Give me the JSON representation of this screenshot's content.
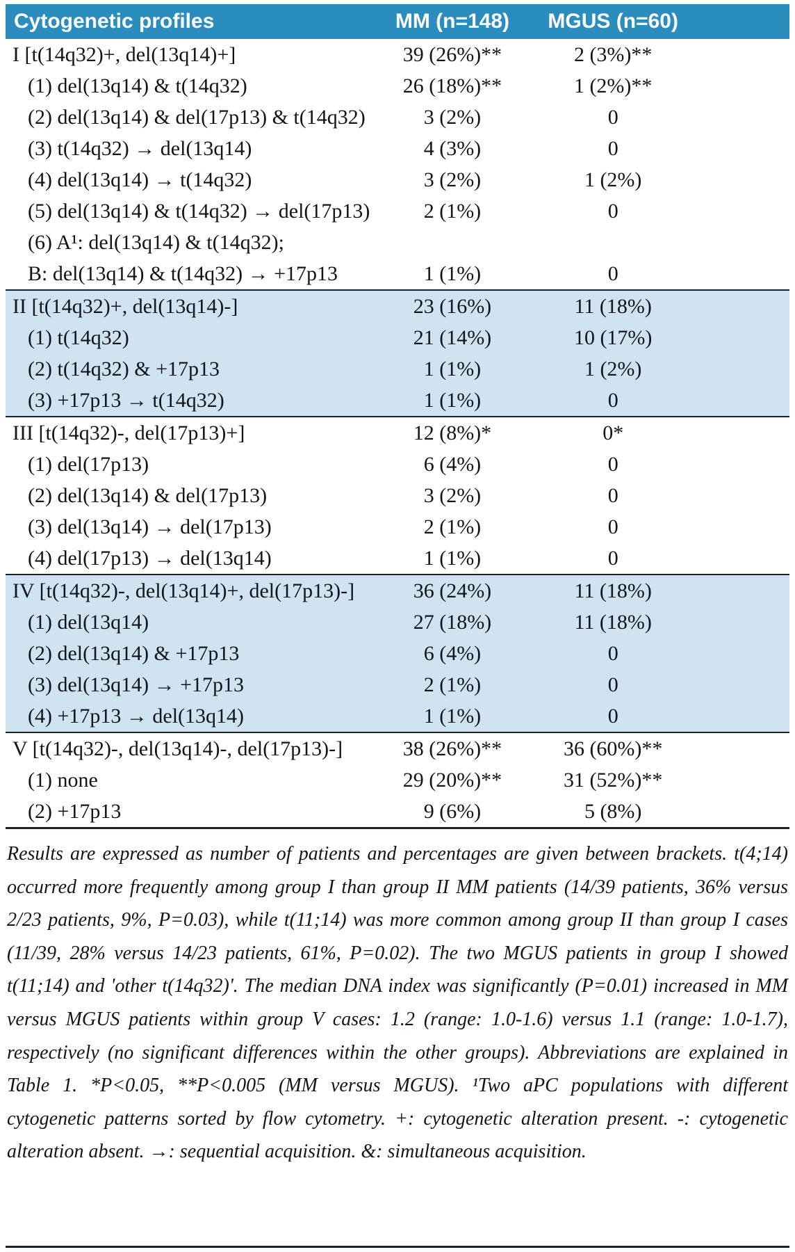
{
  "colors": {
    "header_bg": "#2b8cbe",
    "shaded_bg": "#cfe3f0",
    "text": "#10151c",
    "rule": "#16222e"
  },
  "table": {
    "columns": [
      "Cytogenetic profiles",
      "MM (n=148)",
      "MGUS (n=60)"
    ],
    "sections": [
      {
        "shaded": false,
        "rows": [
          {
            "indent": 0,
            "label": "I [t(14q32)+, del(13q14)+]",
            "mm": "39 (26%)**",
            "mgus": "2 (3%)**"
          },
          {
            "indent": 1,
            "label": "(1) del(13q14) & t(14q32)",
            "mm": "26 (18%)**",
            "mgus": "1 (2%)**"
          },
          {
            "indent": 1,
            "label": "(2) del(13q14) & del(17p13) & t(14q32)",
            "mm": "3 (2%)",
            "mgus": "0"
          },
          {
            "indent": 1,
            "label": "(3) t(14q32) → del(13q14)",
            "mm": "4 (3%)",
            "mgus": "0"
          },
          {
            "indent": 1,
            "label": "(4) del(13q14) → t(14q32)",
            "mm": "3 (2%)",
            "mgus": "1 (2%)"
          },
          {
            "indent": 1,
            "label": "(5) del(13q14) & t(14q32) → del(17p13)",
            "mm": "2 (1%)",
            "mgus": "0"
          },
          {
            "indent": 1,
            "label": "(6) A¹: del(13q14) & t(14q32);",
            "mm": "",
            "mgus": ""
          },
          {
            "indent": 1,
            "label": "B: del(13q14) & t(14q32) → +17p13",
            "mm": "1 (1%)",
            "mgus": "0"
          }
        ]
      },
      {
        "shaded": true,
        "rows": [
          {
            "indent": 0,
            "label": "II [t(14q32)+, del(13q14)-]",
            "mm": "23 (16%)",
            "mgus": "11 (18%)"
          },
          {
            "indent": 1,
            "label": "(1) t(14q32)",
            "mm": "21 (14%)",
            "mgus": "10 (17%)"
          },
          {
            "indent": 1,
            "label": "(2) t(14q32) & +17p13",
            "mm": "1 (1%)",
            "mgus": "1 (2%)"
          },
          {
            "indent": 1,
            "label": "(3) +17p13 → t(14q32)",
            "mm": "1 (1%)",
            "mgus": "0"
          }
        ]
      },
      {
        "shaded": false,
        "rows": [
          {
            "indent": 0,
            "label": "III [t(14q32)-, del(17p13)+]",
            "mm": "12 (8%)*",
            "mgus": "0*"
          },
          {
            "indent": 1,
            "label": "(1) del(17p13)",
            "mm": "6 (4%)",
            "mgus": "0"
          },
          {
            "indent": 1,
            "label": "(2) del(13q14) & del(17p13)",
            "mm": "3 (2%)",
            "mgus": "0"
          },
          {
            "indent": 1,
            "label": "(3) del(13q14) → del(17p13)",
            "mm": "2 (1%)",
            "mgus": "0"
          },
          {
            "indent": 1,
            "label": "(4) del(17p13) → del(13q14)",
            "mm": "1 (1%)",
            "mgus": "0"
          }
        ]
      },
      {
        "shaded": true,
        "rows": [
          {
            "indent": 0,
            "label": "IV [t(14q32)-, del(13q14)+, del(17p13)-]",
            "mm": "36 (24%)",
            "mgus": "11 (18%)"
          },
          {
            "indent": 1,
            "label": "(1) del(13q14)",
            "mm": "27 (18%)",
            "mgus": "11 (18%)"
          },
          {
            "indent": 1,
            "label": "(2) del(13q14) & +17p13",
            "mm": "6 (4%)",
            "mgus": "0"
          },
          {
            "indent": 1,
            "label": "(3) del(13q14) → +17p13",
            "mm": "2 (1%)",
            "mgus": "0"
          },
          {
            "indent": 1,
            "label": "(4) +17p13 → del(13q14)",
            "mm": "1 (1%)",
            "mgus": "0"
          }
        ]
      },
      {
        "shaded": false,
        "rows": [
          {
            "indent": 0,
            "label": "V [t(14q32)-, del(13q14)-, del(17p13)-]",
            "mm": "38 (26%)**",
            "mgus": "36 (60%)**"
          },
          {
            "indent": 1,
            "label": "(1) none",
            "mm": "29 (20%)**",
            "mgus": "31 (52%)**"
          },
          {
            "indent": 1,
            "label": "(2) +17p13",
            "mm": "9 (6%)",
            "mgus": "5 (8%)"
          }
        ]
      }
    ]
  },
  "footnote": "Results are expressed as number of patients and percentages are given between brackets. t(4;14) occurred more frequently among group I than group II MM patients (14/39 patients, 36% versus 2/23 patients, 9%, P=0.03), while t(11;14) was more common among group II than group I cases (11/39, 28% versus 14/23 patients, 61%, P=0.02). The two MGUS patients in group I showed t(11;14) and 'other t(14q32)'. The median DNA index was significantly (P=0.01) increased in MM versus MGUS patients within group V cases: 1.2 (range: 1.0-1.6) versus 1.1 (range: 1.0-1.7), respectively (no significant differences within the other groups). Abbreviations are explained in Table 1. *P<0.05, **P<0.005 (MM versus MGUS). ¹Two aPC populations with different cytogenetic patterns sorted by flow cytometry. +: cytogenetic alteration present. -: cytogenetic alteration absent. →: sequential acquisition. &: simultaneous acquisition."
}
